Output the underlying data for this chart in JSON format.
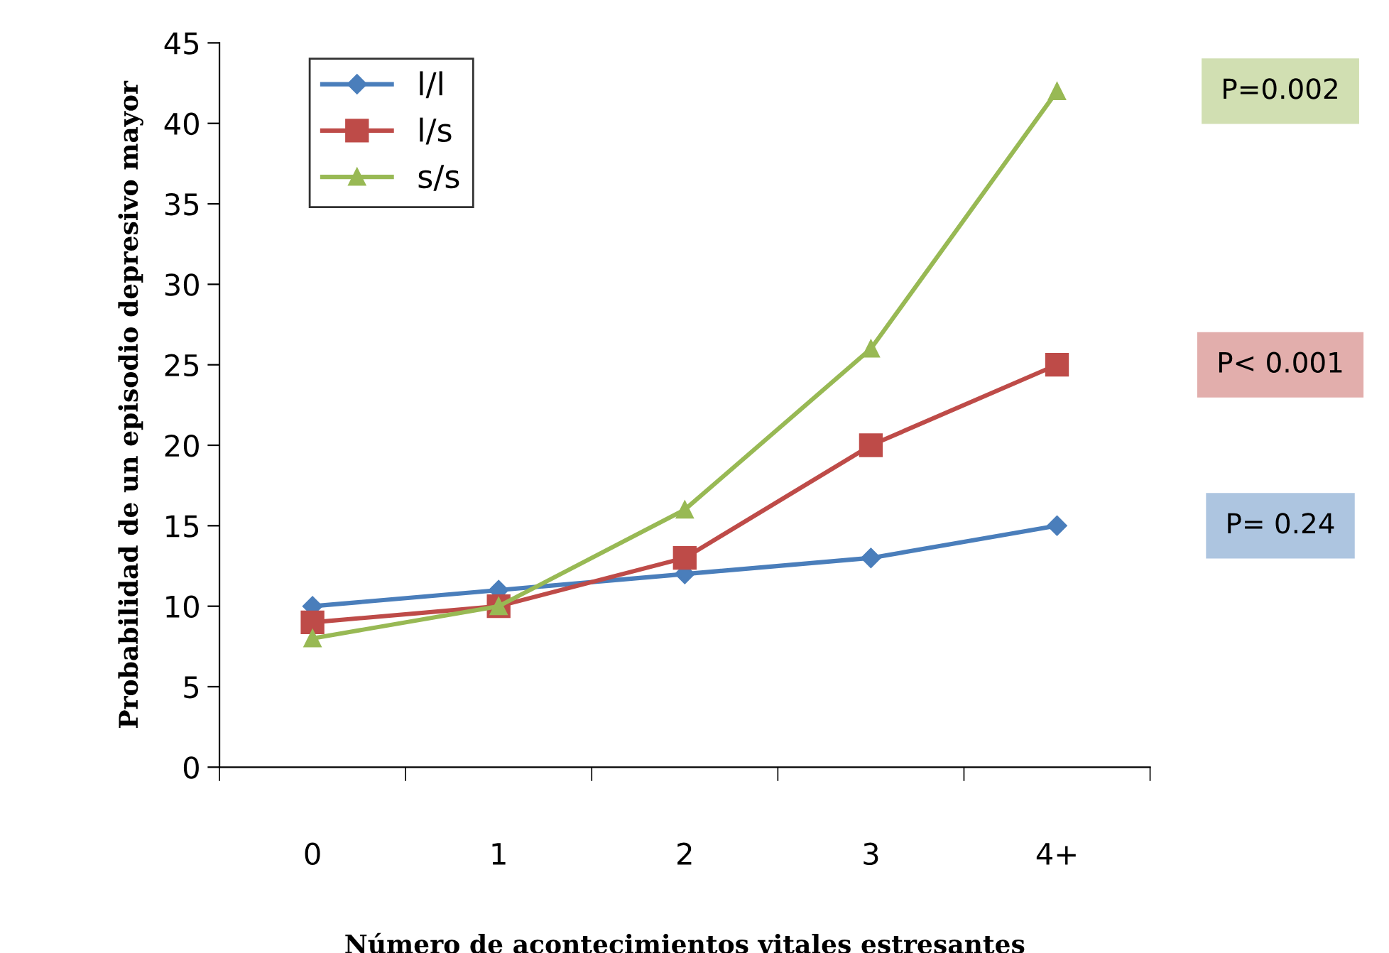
{
  "chart_data": {
    "type": "line",
    "xlabel": "Número de acontecimientos vitales estresantes",
    "ylabel": "Probabilidad de un episodio depresivo mayor",
    "categories": [
      "0",
      "1",
      "2",
      "3",
      "4+"
    ],
    "series": [
      {
        "name": "l/l",
        "color": "#4a7ebb",
        "marker": "diamond",
        "values": [
          10,
          11,
          12,
          13,
          15
        ]
      },
      {
        "name": "l/s",
        "color": "#be4b48",
        "marker": "square",
        "values": [
          9,
          10,
          13,
          20,
          25
        ]
      },
      {
        "name": "s/s",
        "color": "#98b954",
        "marker": "triangle",
        "values": [
          8,
          10,
          16,
          26,
          42
        ]
      }
    ],
    "annotations": [
      "P= 0.24",
      "P< 0.001",
      "P=0.002"
    ],
    "ylim": [
      0,
      45
    ],
    "yticks": [
      0,
      5,
      10,
      15,
      20,
      25,
      30,
      35,
      40,
      45
    ],
    "grid": false,
    "legend": "top left",
    "line_style": "solid"
  }
}
